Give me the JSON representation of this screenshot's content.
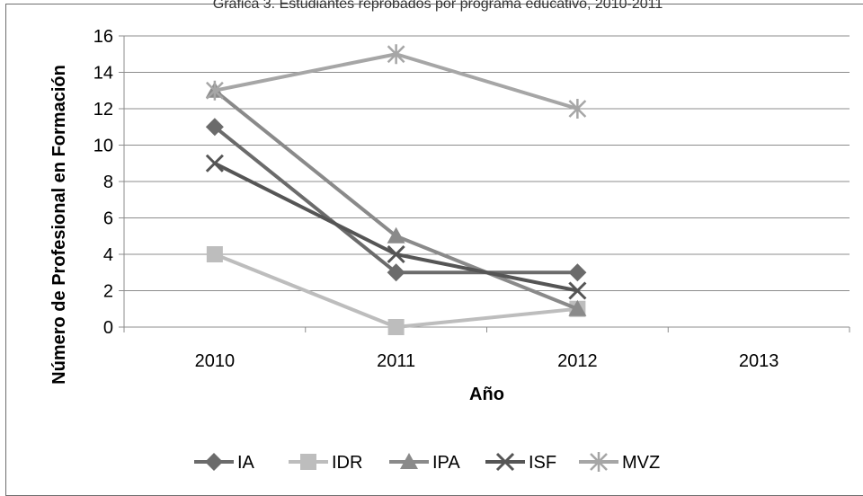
{
  "chart_data": {
    "type": "line",
    "title": "Gráfica 3. Estudiantes reprobados por programa educativo, 2010-2011",
    "xlabel": "Año",
    "ylabel": "Número de Profesional en Formación",
    "categories": [
      "2010",
      "2011",
      "2012",
      "2013"
    ],
    "ylim": [
      0,
      16
    ],
    "yticks": [
      0,
      2,
      4,
      6,
      8,
      10,
      12,
      14,
      16
    ],
    "grid": true,
    "legend_position": "bottom",
    "series": [
      {
        "name": "IA",
        "values": [
          11,
          3,
          3,
          null
        ],
        "color": "#6b6b6b",
        "marker": "diamond"
      },
      {
        "name": "IDR",
        "values": [
          4,
          0,
          1,
          null
        ],
        "color": "#bdbdbd",
        "marker": "square"
      },
      {
        "name": "IPA",
        "values": [
          13,
          5,
          1,
          null
        ],
        "color": "#8a8a8a",
        "marker": "triangle"
      },
      {
        "name": "ISF",
        "values": [
          9,
          4,
          2,
          null
        ],
        "color": "#555555",
        "marker": "x"
      },
      {
        "name": "MVZ",
        "values": [
          13,
          15,
          12,
          null
        ],
        "color": "#a6a6a6",
        "marker": "star"
      }
    ]
  }
}
